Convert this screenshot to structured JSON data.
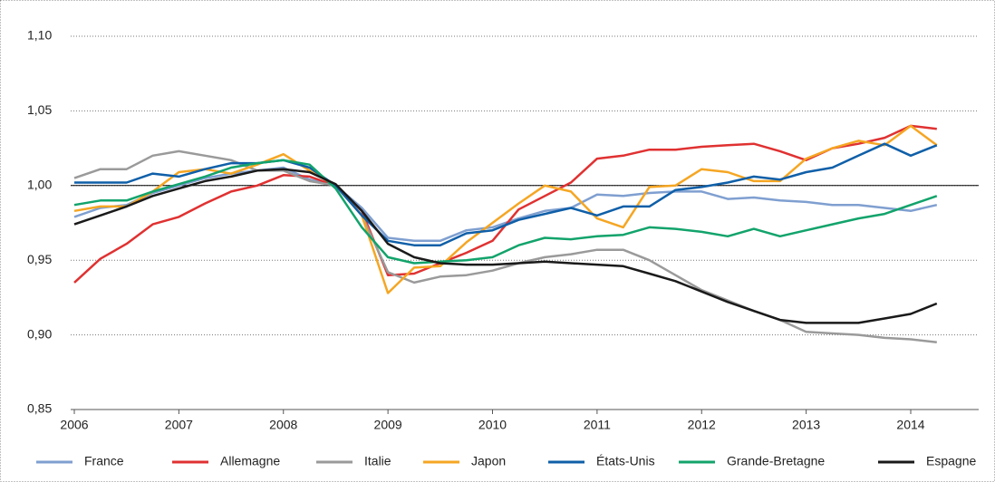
{
  "chart_data": {
    "type": "line",
    "x": [
      2006,
      2006.25,
      2006.5,
      2006.75,
      2007,
      2007.25,
      2007.5,
      2007.75,
      2008,
      2008.25,
      2008.5,
      2008.75,
      2009,
      2009.25,
      2009.5,
      2009.75,
      2010,
      2010.25,
      2010.5,
      2010.75,
      2011,
      2011.25,
      2011.5,
      2011.75,
      2012,
      2012.25,
      2012.5,
      2012.75,
      2013,
      2013.25,
      2013.5,
      2013.75,
      2014,
      2014.25
    ],
    "series": [
      {
        "name": "France",
        "color": "#7f9fd0",
        "values": [
          0.979,
          0.985,
          0.987,
          0.995,
          1.0,
          1.005,
          1.008,
          1.01,
          1.012,
          1.004,
          1.0,
          0.985,
          0.965,
          0.963,
          0.963,
          0.97,
          0.972,
          0.978,
          0.983,
          0.985,
          0.994,
          0.993,
          0.995,
          0.996,
          0.996,
          0.991,
          0.992,
          0.99,
          0.989,
          0.987,
          0.987,
          0.985,
          0.983,
          0.987
        ]
      },
      {
        "name": "Allemagne",
        "color": "#e03131",
        "values": [
          0.935,
          0.951,
          0.961,
          0.974,
          0.979,
          0.988,
          0.996,
          1.0,
          1.007,
          1.006,
          1.0,
          0.983,
          0.94,
          0.941,
          0.948,
          0.955,
          0.963,
          0.984,
          0.993,
          1.002,
          1.018,
          1.02,
          1.024,
          1.024,
          1.026,
          1.027,
          1.028,
          1.023,
          1.017,
          1.025,
          1.028,
          1.032,
          1.04,
          1.038
        ]
      },
      {
        "name": "Italie",
        "color": "#9a9a9a",
        "values": [
          1.005,
          1.011,
          1.011,
          1.02,
          1.023,
          1.02,
          1.017,
          1.01,
          1.01,
          1.003,
          1.0,
          0.98,
          0.942,
          0.935,
          0.939,
          0.94,
          0.943,
          0.948,
          0.952,
          0.954,
          0.957,
          0.957,
          0.95,
          0.94,
          0.93,
          0.923,
          0.916,
          0.91,
          0.902,
          0.901,
          0.9,
          0.898,
          0.897,
          0.895
        ]
      },
      {
        "name": "Japon",
        "color": "#f5a623",
        "values": [
          0.983,
          0.986,
          0.986,
          0.996,
          1.009,
          1.011,
          1.008,
          1.014,
          1.021,
          1.01,
          1.0,
          0.98,
          0.928,
          0.945,
          0.946,
          0.962,
          0.975,
          0.988,
          1.0,
          0.996,
          0.978,
          0.972,
          0.999,
          1.0,
          1.011,
          1.009,
          1.003,
          1.003,
          1.018,
          1.025,
          1.03,
          1.027,
          1.04,
          1.027
        ]
      },
      {
        "name": "États-Unis",
        "color": "#0f5fa8",
        "values": [
          1.002,
          1.002,
          1.002,
          1.008,
          1.006,
          1.011,
          1.015,
          1.015,
          1.017,
          1.012,
          1.0,
          0.98,
          0.963,
          0.96,
          0.96,
          0.968,
          0.97,
          0.977,
          0.981,
          0.985,
          0.98,
          0.986,
          0.986,
          0.997,
          0.999,
          1.002,
          1.006,
          1.004,
          1.009,
          1.012,
          1.02,
          1.028,
          1.02,
          1.027
        ]
      },
      {
        "name": "Grande-Bretagne",
        "color": "#12a36b",
        "values": [
          0.987,
          0.99,
          0.99,
          0.996,
          1.001,
          1.006,
          1.012,
          1.015,
          1.017,
          1.014,
          0.998,
          0.972,
          0.952,
          0.948,
          0.949,
          0.95,
          0.952,
          0.96,
          0.965,
          0.964,
          0.966,
          0.967,
          0.972,
          0.971,
          0.969,
          0.966,
          0.971,
          0.966,
          0.97,
          0.974,
          0.978,
          0.981,
          0.987,
          0.993
        ]
      },
      {
        "name": "Espagne",
        "color": "#1a1a1a",
        "values": [
          0.974,
          0.98,
          0.986,
          0.993,
          0.998,
          1.003,
          1.006,
          1.01,
          1.011,
          1.009,
          1.001,
          0.983,
          0.961,
          0.952,
          0.948,
          0.947,
          0.947,
          0.948,
          0.949,
          0.948,
          0.947,
          0.946,
          0.941,
          0.936,
          0.929,
          0.922,
          0.916,
          0.91,
          0.908,
          0.908,
          0.908,
          0.911,
          0.914,
          0.921
        ]
      }
    ],
    "xlim": [
      2006,
      2014.65
    ],
    "xticks": [
      2006,
      2007,
      2008,
      2009,
      2010,
      2011,
      2012,
      2013,
      2014
    ],
    "ylim": [
      0.85,
      1.1
    ],
    "yticks": [
      {
        "value": 0.85,
        "label": "0,85"
      },
      {
        "value": 0.9,
        "label": "0,90"
      },
      {
        "value": 0.95,
        "label": "0,95"
      },
      {
        "value": 1.0,
        "label": "1,00"
      },
      {
        "value": 1.05,
        "label": "1,05"
      },
      {
        "value": 1.1,
        "label": "1,10"
      }
    ],
    "reference_line": 1.0,
    "grid": true,
    "legend": "bottom"
  }
}
